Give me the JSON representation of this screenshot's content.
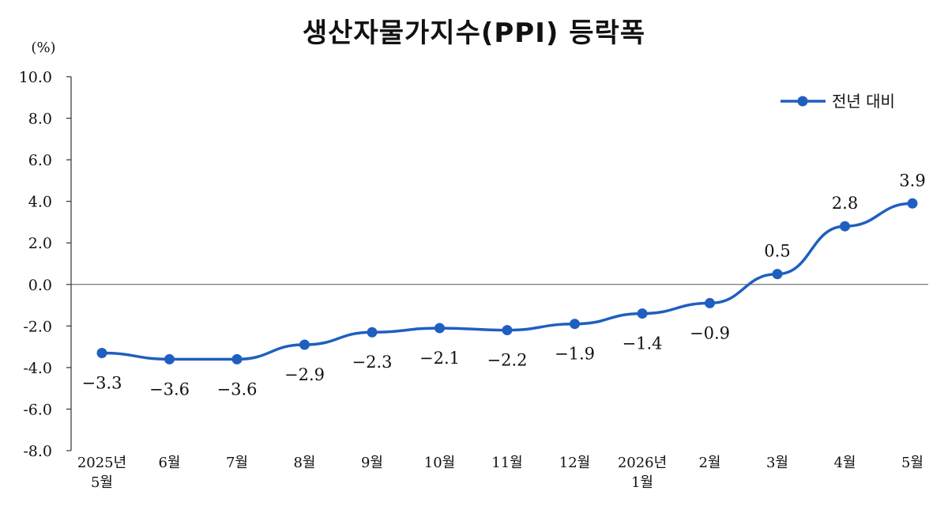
{
  "chart_data": {
    "type": "line",
    "title": "생산자물가지수(PPI) 등락폭",
    "unit": "(%)",
    "ylim": [
      -8.0,
      10.0
    ],
    "yticks": [
      "10.0",
      "8.0",
      "6.0",
      "4.0",
      "2.0",
      "0.0",
      "-2.0",
      "-4.0",
      "-6.0",
      "-8.0"
    ],
    "categories": [
      [
        "2025년",
        "5월"
      ],
      [
        "6월"
      ],
      [
        "7월"
      ],
      [
        "8월"
      ],
      [
        "9월"
      ],
      [
        "10월"
      ],
      [
        "11월"
      ],
      [
        "12월"
      ],
      [
        "2026년",
        "1월"
      ],
      [
        "2월"
      ],
      [
        "3월"
      ],
      [
        "4월"
      ],
      [
        "5월"
      ]
    ],
    "series": [
      {
        "name": "전년 대비",
        "color": "#1f5fbf",
        "values": [
          -3.3,
          -3.6,
          -3.6,
          -2.9,
          -2.3,
          -2.1,
          -2.2,
          -1.9,
          -1.4,
          -0.9,
          0.5,
          2.8,
          3.9
        ],
        "labels": [
          "-3.3",
          "-3.6",
          "-3.6",
          "-2.9",
          "-2.3",
          "-2.1",
          "-2.2",
          "-1.9",
          "-1.4",
          "-0.9",
          "0.5",
          "2.8",
          "3.9"
        ]
      }
    ],
    "grid": false,
    "zero_line": true,
    "legend_position": "top-right"
  }
}
